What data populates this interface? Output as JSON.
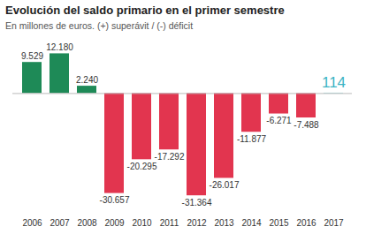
{
  "chart_data": {
    "type": "bar",
    "title": "Evolución del saldo primario en el primer semestre",
    "subtitle": "En millones de euros. (+) superávit / (-) déficit",
    "categories": [
      "2006",
      "2007",
      "2008",
      "2009",
      "2010",
      "2011",
      "2012",
      "2013",
      "2014",
      "2015",
      "2016",
      "2017"
    ],
    "values": [
      9529,
      12180,
      2240,
      -30657,
      -20295,
      -17292,
      -31364,
      -26017,
      -11877,
      -6271,
      -7488,
      114
    ],
    "value_labels": [
      "9.529",
      "12.180",
      "2.240",
      "-30.657",
      "-20.295",
      "-17.292",
      "-31.364",
      "-26.017",
      "-11.877",
      "-6.271",
      "-7.488",
      "114"
    ],
    "colors": [
      "#1e8a57",
      "#1e8a57",
      "#1e8a57",
      "#e2354f",
      "#e2354f",
      "#e2354f",
      "#e2354f",
      "#e2354f",
      "#e2354f",
      "#e2354f",
      "#e2354f",
      "#3bb4c4"
    ],
    "ylim": [
      -37000,
      15000
    ],
    "data_labels": true,
    "tick_labels": "x"
  }
}
